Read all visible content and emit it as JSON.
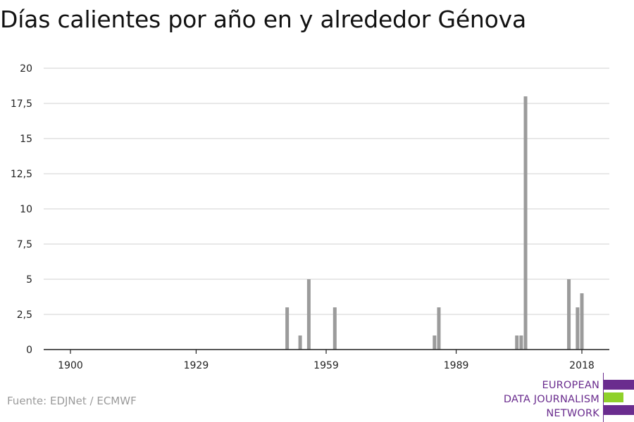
{
  "title": "Días calientes por año en y alrededor Génova",
  "source": "Fuente: EDJNet / ECMWF",
  "logo": {
    "lines": [
      "EUROPEAN",
      "DATA JOURNALISM",
      "NETWORK"
    ],
    "colors": {
      "text": "#6a2c8e",
      "bar_primary": "#6a2c8e",
      "bar_accent": "#8fd12a",
      "divider": "#6a2c8e"
    }
  },
  "chart_data": {
    "type": "bar",
    "title": "Días calientes por año en y alrededor Génova",
    "xlabel": "",
    "ylabel": "",
    "xlim": [
      1900,
      2018
    ],
    "ylim": [
      0,
      20
    ],
    "x_ticks": [
      1900,
      1929,
      1959,
      1989,
      2018
    ],
    "y_ticks": [
      0,
      2.5,
      5,
      7.5,
      10,
      12.5,
      15,
      17.5,
      20
    ],
    "y_tick_labels": [
      "0",
      "2,5",
      "5",
      "7,5",
      "10",
      "12,5",
      "15",
      "17,5",
      "20"
    ],
    "grid": "horizontal",
    "bar_color": "#9b9b9b",
    "x": [
      1950,
      1953,
      1955,
      1961,
      1984,
      1985,
      2003,
      2004,
      2005,
      2015,
      2017,
      2018
    ],
    "values": [
      3,
      1,
      5,
      3,
      1,
      3,
      1,
      1,
      18,
      5,
      3,
      4
    ]
  }
}
